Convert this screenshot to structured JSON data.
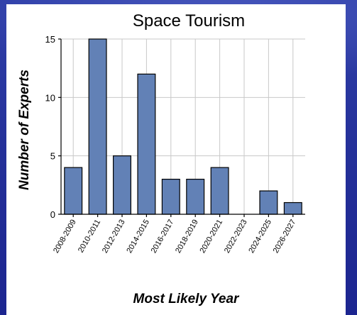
{
  "chart_data": {
    "type": "bar",
    "title": "Space Tourism",
    "xlabel": "Most Likely Year",
    "ylabel": "Number of Experts",
    "categories": [
      "2008-2009",
      "2010-2011",
      "2012-2013",
      "2014-2015",
      "2016-2017",
      "2018-2019",
      "2020-2021",
      "2022-2023",
      "2024-2025",
      "2026-2027"
    ],
    "values": [
      4,
      15,
      5,
      12,
      3,
      3,
      4,
      0,
      2,
      1
    ],
    "ylim": [
      0,
      15
    ],
    "yticks": [
      0,
      5,
      10,
      15
    ],
    "grid": true,
    "colors": {
      "bar": "#6281b6",
      "background": "#27349c",
      "grid": "#c8c8c8"
    }
  }
}
